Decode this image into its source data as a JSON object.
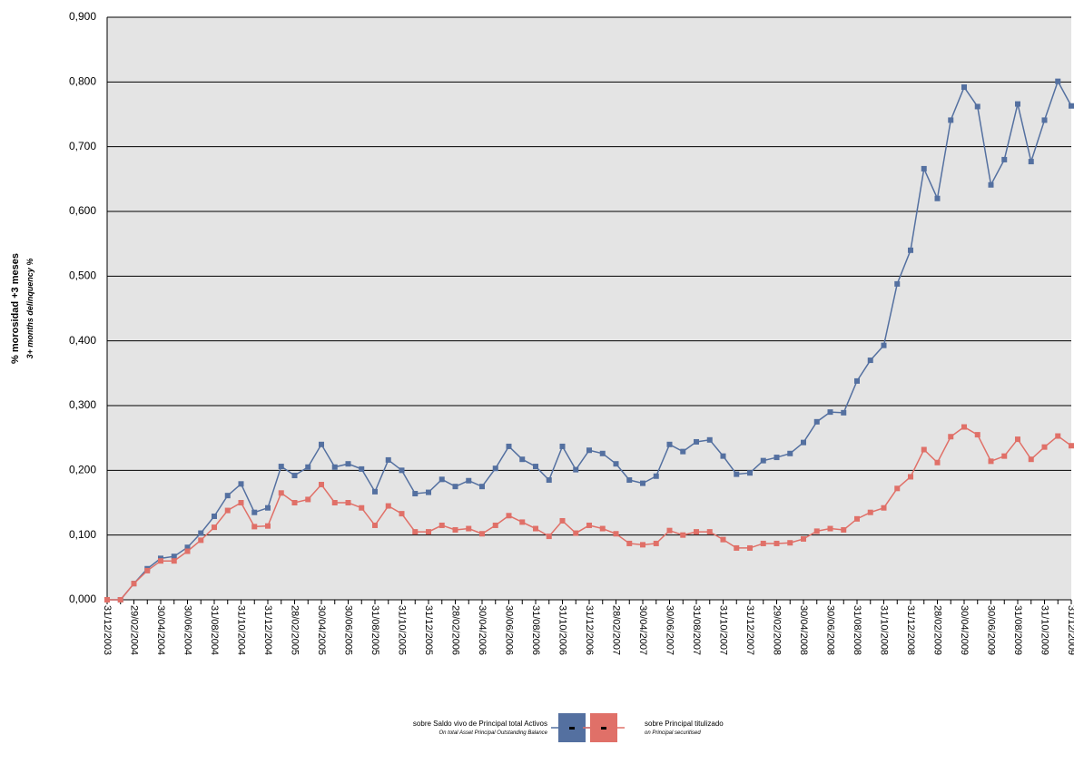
{
  "chart_data": {
    "type": "line",
    "y_label": "% morosidad +3 meses",
    "y_label_en": "3+ months delinquency %",
    "categories": [
      "31/12/2003",
      null,
      "29/02/2004",
      null,
      "30/04/2004",
      null,
      "30/06/2004",
      null,
      "31/08/2004",
      null,
      "31/10/2004",
      null,
      "31/12/2004",
      null,
      "28/02/2005",
      null,
      "30/04/2005",
      null,
      "30/06/2005",
      null,
      "31/08/2005",
      null,
      "31/10/2005",
      null,
      "31/12/2005",
      null,
      "28/02/2006",
      null,
      "30/04/2006",
      null,
      "30/06/2006",
      null,
      "31/08/2006",
      null,
      "31/10/2006",
      null,
      "31/12/2006",
      null,
      "28/02/2007",
      null,
      "30/04/2007",
      null,
      "30/06/2007",
      null,
      "31/08/2007",
      null,
      "31/10/2007",
      null,
      "31/12/2007",
      null,
      "29/02/2008",
      null,
      "30/04/2008",
      null,
      "30/06/2008",
      null,
      "31/08/2008",
      null,
      "31/10/2008",
      null,
      "31/12/2008",
      null,
      "28/02/2009",
      null,
      "30/04/2009",
      null,
      "30/06/2009",
      null,
      "31/08/2009",
      null,
      "31/10/2009",
      null,
      "31/12/2009"
    ],
    "series": [
      {
        "name": "sobre Saldo vivo de Principal total Activos",
        "name_en": "On total Asset Principal Outstanding Balance",
        "color": "#5470a0",
        "values": [
          0,
          0,
          0.025,
          0.048,
          0.064,
          0.067,
          0.081,
          0.103,
          0.129,
          0.161,
          0.179,
          0.135,
          0.142,
          0.206,
          0.192,
          0.205,
          0.24,
          0.205,
          0.21,
          0.202,
          0.167,
          0.216,
          0.2,
          0.164,
          0.166,
          0.186,
          0.175,
          0.184,
          0.175,
          0.203,
          0.237,
          0.217,
          0.206,
          0.185,
          0.237,
          0.201,
          0.231,
          0.226,
          0.21,
          0.185,
          0.18,
          0.191,
          0.24,
          0.229,
          0.244,
          0.247,
          0.222,
          0.194,
          0.196,
          0.215,
          0.22,
          0.226,
          0.243,
          0.275,
          0.29,
          0.289,
          0.338,
          0.37,
          0.393,
          0.488,
          0.54,
          0.666,
          0.62,
          0.741,
          0.792,
          0.762,
          0.641,
          0.68,
          0.766,
          0.677,
          0.741,
          0.801,
          0.763
        ]
      },
      {
        "name": "sobre Principal titulizado",
        "name_en": "on Principal securitised",
        "color": "#e07068",
        "values": [
          0,
          0,
          0.025,
          0.045,
          0.06,
          0.06,
          0.075,
          0.092,
          0.112,
          0.138,
          0.15,
          0.113,
          0.114,
          0.165,
          0.15,
          0.155,
          0.178,
          0.15,
          0.15,
          0.142,
          0.115,
          0.145,
          0.133,
          0.105,
          0.105,
          0.115,
          0.108,
          0.11,
          0.102,
          0.115,
          0.13,
          0.12,
          0.11,
          0.098,
          0.122,
          0.103,
          0.115,
          0.11,
          0.102,
          0.087,
          0.085,
          0.087,
          0.107,
          0.1,
          0.105,
          0.105,
          0.093,
          0.08,
          0.08,
          0.087,
          0.087,
          0.088,
          0.094,
          0.106,
          0.11,
          0.108,
          0.125,
          0.135,
          0.142,
          0.172,
          0.19,
          0.232,
          0.212,
          0.252,
          0.267,
          0.255,
          0.214,
          0.222,
          0.248,
          0.217,
          0.236,
          0.253,
          0.238
        ]
      }
    ],
    "ylim": [
      0,
      0.9
    ],
    "yticks": [
      {
        "value": 0,
        "label": "0,000"
      },
      {
        "value": 0.1,
        "label": "0,100"
      },
      {
        "value": 0.2,
        "label": "0,200"
      },
      {
        "value": 0.3,
        "label": "0,300"
      },
      {
        "value": 0.4,
        "label": "0,400"
      },
      {
        "value": 0.5,
        "label": "0,500"
      },
      {
        "value": 0.6,
        "label": "0,600"
      },
      {
        "value": 0.7,
        "label": "0,700"
      },
      {
        "value": 0.8,
        "label": "0,800"
      },
      {
        "value": 0.9,
        "label": "0,900"
      }
    ],
    "grid": true,
    "legend": "bottom"
  }
}
